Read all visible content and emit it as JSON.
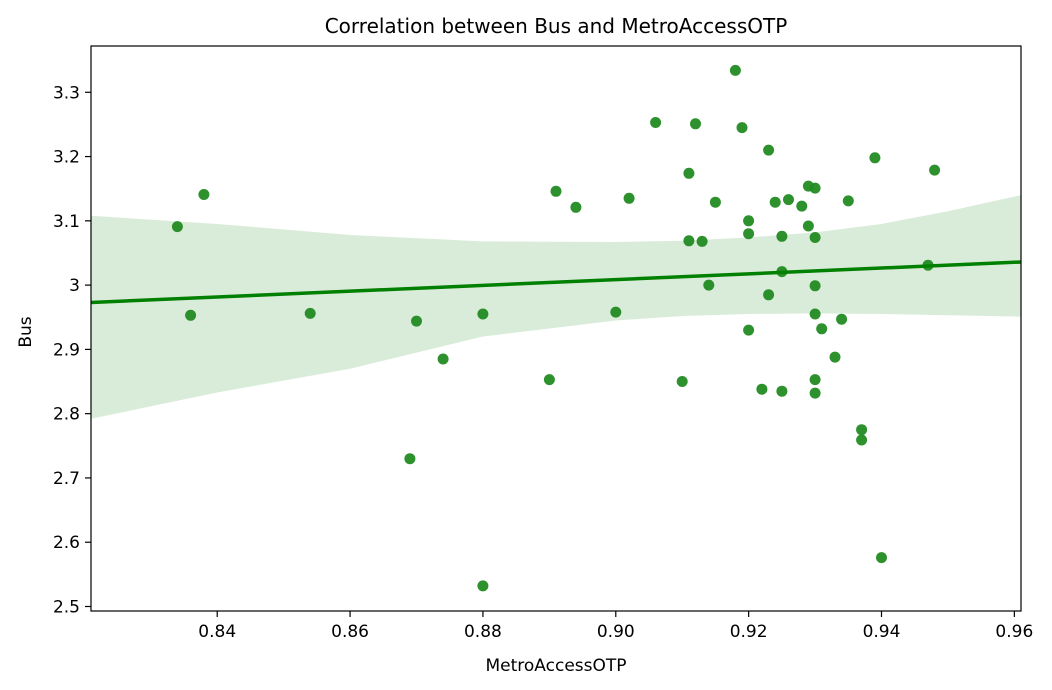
{
  "chart_data": {
    "type": "scatter",
    "title": "Correlation between Bus and MetroAccessOTP",
    "xlabel": "MetroAccessOTP",
    "ylabel": "Bus",
    "xlim": [
      0.821,
      0.961
    ],
    "ylim": [
      2.493,
      3.372
    ],
    "x_ticks": [
      0.84,
      0.86,
      0.88,
      0.9,
      0.92,
      0.94,
      0.96
    ],
    "x_tick_labels": [
      "0.84",
      "0.86",
      "0.88",
      "0.90",
      "0.92",
      "0.94",
      "0.96"
    ],
    "y_ticks": [
      2.5,
      2.6,
      2.7,
      2.8,
      2.9,
      3.0,
      3.1,
      3.2,
      3.3
    ],
    "y_tick_labels": [
      "2.5",
      "2.6",
      "2.7",
      "2.8",
      "2.9",
      "3",
      "3.1",
      "3.2",
      "3.3"
    ],
    "grid": false,
    "colors": {
      "points": "#228b22",
      "regression_line": "#008000",
      "confidence_band": "#d9ecd9"
    },
    "points": [
      {
        "x": 0.834,
        "y": 3.091
      },
      {
        "x": 0.836,
        "y": 2.953
      },
      {
        "x": 0.838,
        "y": 3.141
      },
      {
        "x": 0.854,
        "y": 2.956
      },
      {
        "x": 0.869,
        "y": 2.73
      },
      {
        "x": 0.87,
        "y": 2.944
      },
      {
        "x": 0.874,
        "y": 2.885
      },
      {
        "x": 0.88,
        "y": 2.955
      },
      {
        "x": 0.88,
        "y": 2.532
      },
      {
        "x": 0.89,
        "y": 2.853
      },
      {
        "x": 0.891,
        "y": 3.146
      },
      {
        "x": 0.894,
        "y": 3.121
      },
      {
        "x": 0.9,
        "y": 2.958
      },
      {
        "x": 0.902,
        "y": 3.135
      },
      {
        "x": 0.906,
        "y": 3.253
      },
      {
        "x": 0.91,
        "y": 2.85
      },
      {
        "x": 0.911,
        "y": 3.174
      },
      {
        "x": 0.911,
        "y": 3.069
      },
      {
        "x": 0.912,
        "y": 3.251
      },
      {
        "x": 0.913,
        "y": 3.068
      },
      {
        "x": 0.914,
        "y": 3.0
      },
      {
        "x": 0.915,
        "y": 3.129
      },
      {
        "x": 0.918,
        "y": 3.334
      },
      {
        "x": 0.919,
        "y": 3.245
      },
      {
        "x": 0.92,
        "y": 3.1
      },
      {
        "x": 0.92,
        "y": 3.08
      },
      {
        "x": 0.92,
        "y": 2.93
      },
      {
        "x": 0.922,
        "y": 2.838
      },
      {
        "x": 0.923,
        "y": 3.21
      },
      {
        "x": 0.923,
        "y": 2.985
      },
      {
        "x": 0.924,
        "y": 3.129
      },
      {
        "x": 0.925,
        "y": 3.076
      },
      {
        "x": 0.925,
        "y": 3.021
      },
      {
        "x": 0.925,
        "y": 2.835
      },
      {
        "x": 0.926,
        "y": 3.133
      },
      {
        "x": 0.928,
        "y": 3.123
      },
      {
        "x": 0.929,
        "y": 3.154
      },
      {
        "x": 0.929,
        "y": 3.092
      },
      {
        "x": 0.93,
        "y": 3.151
      },
      {
        "x": 0.93,
        "y": 3.074
      },
      {
        "x": 0.93,
        "y": 2.999
      },
      {
        "x": 0.93,
        "y": 2.955
      },
      {
        "x": 0.93,
        "y": 2.853
      },
      {
        "x": 0.93,
        "y": 2.832
      },
      {
        "x": 0.931,
        "y": 2.932
      },
      {
        "x": 0.933,
        "y": 2.888
      },
      {
        "x": 0.934,
        "y": 2.947
      },
      {
        "x": 0.935,
        "y": 3.131
      },
      {
        "x": 0.937,
        "y": 2.775
      },
      {
        "x": 0.937,
        "y": 2.759
      },
      {
        "x": 0.939,
        "y": 3.198
      },
      {
        "x": 0.94,
        "y": 2.576
      },
      {
        "x": 0.947,
        "y": 3.031
      },
      {
        "x": 0.948,
        "y": 3.179
      }
    ],
    "regression": {
      "x": [
        0.821,
        0.961
      ],
      "y": [
        2.973,
        3.036
      ]
    },
    "confidence_band": {
      "x": [
        0.821,
        0.84,
        0.86,
        0.88,
        0.9,
        0.91,
        0.92,
        0.93,
        0.94,
        0.95,
        0.961
      ],
      "lower": [
        2.792,
        2.833,
        2.87,
        2.92,
        2.945,
        2.952,
        2.955,
        2.956,
        2.955,
        2.953,
        2.951
      ],
      "upper": [
        3.108,
        3.095,
        3.078,
        3.068,
        3.067,
        3.069,
        3.074,
        3.082,
        3.095,
        3.115,
        3.14
      ]
    }
  }
}
